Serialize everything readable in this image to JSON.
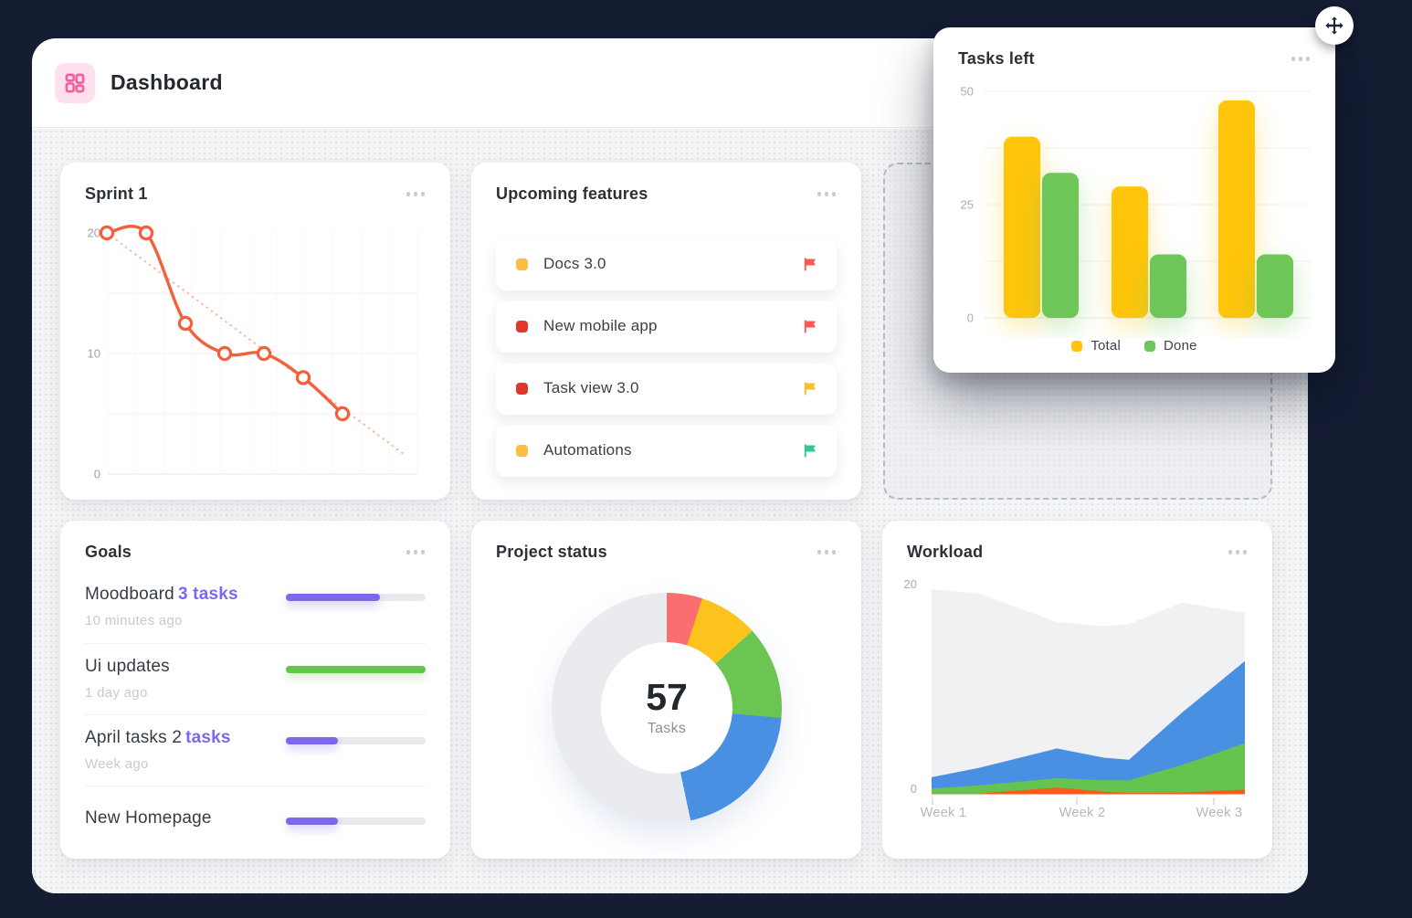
{
  "header": {
    "title": "Dashboard"
  },
  "cards": {
    "sprint": {
      "title": "Sprint 1",
      "chart_data": {
        "type": "line",
        "x": [
          0,
          1,
          2,
          3,
          4,
          5,
          6
        ],
        "values": [
          20,
          20,
          12.5,
          10,
          10,
          8,
          5
        ],
        "trend_line": {
          "start_value": 20,
          "end_value": 1.6
        },
        "ylim": [
          0,
          20
        ],
        "yticks": [
          "20",
          "10",
          "0"
        ],
        "grid_values": [
          15,
          10,
          5
        ],
        "grid_columns": 11,
        "line_color": "#f4603c",
        "trend_color": "#f9b9a6"
      }
    },
    "upcoming": {
      "title": "Upcoming features",
      "items": [
        {
          "label": "Docs 3.0",
          "bullet_color": "#fcbe3f",
          "flag_color": "#fb5a55"
        },
        {
          "label": "New mobile app",
          "bullet_color": "#e2362b",
          "flag_color": "#fb5a55"
        },
        {
          "label": "Task view 3.0",
          "bullet_color": "#e2362b",
          "flag_color": "#fdbe2e"
        },
        {
          "label": "Automations",
          "bullet_color": "#fcbe3f",
          "flag_color": "#35c78f"
        }
      ]
    },
    "tasks_left": {
      "title": "Tasks left",
      "chart_data": {
        "type": "bar",
        "groups": 3,
        "series": [
          {
            "name": "Total",
            "color": "#fec50b",
            "values": [
              40,
              29,
              48
            ]
          },
          {
            "name": "Done",
            "color": "#6dc657",
            "values": [
              32,
              14,
              14
            ]
          }
        ],
        "ylim": [
          0,
          50
        ],
        "yticks": [
          "50",
          "25",
          "0"
        ],
        "legend_position": "bottom"
      }
    },
    "goals": {
      "title": "Goals",
      "items": [
        {
          "title": "Moodboard",
          "badge": "3 tasks",
          "time": "10 minutes ago",
          "progress": 67,
          "color": "#7b68ee"
        },
        {
          "title": "Ui updates",
          "badge": "",
          "time": "1 day ago",
          "progress": 100,
          "color": "#64c44e"
        },
        {
          "title": "April tasks 2",
          "badge": "tasks",
          "time": "Week ago",
          "progress": 37,
          "color": "#7b68ee"
        },
        {
          "title": "New Homepage",
          "badge": "",
          "time": "",
          "progress": 37,
          "color": "#7b68ee"
        }
      ]
    },
    "project_status": {
      "title": "Project status",
      "center_value": "57",
      "center_label": "Tasks",
      "chart_data": {
        "type": "donut",
        "slices": [
          {
            "name": "red",
            "color": "#f96e6e",
            "deg": 18
          },
          {
            "name": "yellow",
            "color": "#fcc31c",
            "deg": 30
          },
          {
            "name": "green",
            "color": "#6cc553",
            "deg": 47
          },
          {
            "name": "blue",
            "color": "#4a90e2",
            "deg": 73
          },
          {
            "name": "gray",
            "color": "#e9ebef",
            "deg": 192
          }
        ]
      }
    },
    "workload": {
      "title": "Workload",
      "chart_data": {
        "type": "layered-area",
        "x_pct": [
          0,
          15,
          40,
          55,
          63,
          80,
          100
        ],
        "series": [
          {
            "name": "gray",
            "color": "#f0f1f3",
            "values": [
              20,
              19.6,
              16.8,
              16.4,
              16.6,
              18.7,
              17.7
            ]
          },
          {
            "name": "blue",
            "color": "#4a90e2",
            "values": [
              1.7,
              2.6,
              4.5,
              3.6,
              3.4,
              8,
              13
            ]
          },
          {
            "name": "green",
            "color": "#64c44e",
            "values": [
              0.6,
              0.9,
              1.6,
              1.4,
              1.4,
              2.9,
              5
            ]
          },
          {
            "name": "orange",
            "color": "#fb5a1d",
            "values": [
              0.1,
              0.1,
              0.7,
              0.3,
              0.15,
              0.2,
              0.5
            ]
          }
        ],
        "ylim": [
          0,
          20
        ],
        "yticks": [
          "20",
          "0"
        ],
        "x_labels": [
          "Week 1",
          "Week 2",
          "Week 3"
        ]
      }
    }
  }
}
